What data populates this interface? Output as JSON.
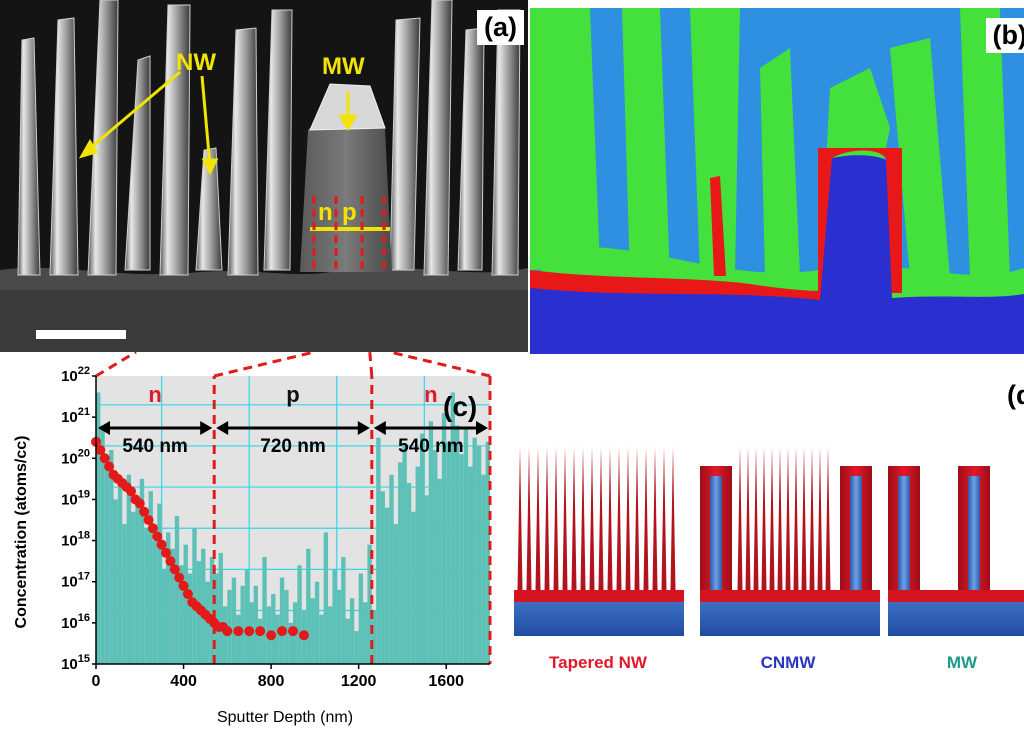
{
  "panel_a": {
    "label": "(a)",
    "annotations": {
      "nw": "NW",
      "mw": "MW",
      "n": "n",
      "p": "p"
    }
  },
  "panel_b": {
    "label": "(b)"
  },
  "panel_c": {
    "label": "(c)"
  },
  "panel_d": {
    "label": "(d",
    "structures": [
      {
        "label": "Tapered NW",
        "color": "#e0192a"
      },
      {
        "label": "CNMW",
        "color": "#2b35c0"
      },
      {
        "label": "MW",
        "color": "#1f9a8a"
      }
    ]
  },
  "chart_data": {
    "type": "bar",
    "ylabel": "Concentration (atoms/cc)",
    "xlabel": "Sputter Depth (nm)",
    "xlim": [
      0,
      1800
    ],
    "ylim_log10": [
      15,
      22
    ],
    "y_scale": "log",
    "x_ticks": [
      "0",
      "400",
      "800",
      "1200",
      "1600"
    ],
    "y_ticks": [
      "10^15",
      "10^16",
      "10^17",
      "10^18",
      "10^19",
      "10^20",
      "10^21",
      "10^22"
    ],
    "regions": [
      {
        "label": "n",
        "from": 0,
        "to": 540,
        "width_label": "540 nm",
        "label_color": "#e0192a"
      },
      {
        "label": "p",
        "from": 540,
        "to": 1260,
        "width_label": "720 nm",
        "label_color": "#111111"
      },
      {
        "label": "n",
        "from": 1260,
        "to": 1800,
        "width_label": "540 nm",
        "label_color": "#e0192a"
      }
    ],
    "series": [
      {
        "style": "bars",
        "color": "#5ec1b8",
        "bin_width_nm": 20,
        "start_nm": 0,
        "log10_values": [
          21.6,
          20.8,
          19.8,
          20.2,
          19.0,
          19.5,
          18.4,
          19.6,
          18.7,
          18.9,
          19.5,
          18.3,
          19.2,
          18.0,
          18.9,
          17.3,
          18.2,
          17.8,
          18.6,
          17.4,
          17.9,
          17.2,
          18.3,
          17.5,
          17.8,
          17.0,
          17.6,
          17.2,
          17.7,
          16.4,
          16.8,
          17.1,
          16.2,
          16.9,
          17.3,
          16.5,
          16.9,
          16.1,
          17.6,
          16.4,
          16.7,
          16.2,
          17.1,
          16.8,
          16.0,
          16.5,
          17.4,
          16.3,
          17.8,
          16.6,
          17.0,
          16.2,
          18.2,
          16.4,
          17.3,
          16.8,
          17.6,
          16.1,
          16.6,
          15.8,
          17.2,
          16.5,
          17.9,
          16.3,
          20.5,
          19.2,
          18.8,
          19.6,
          18.4,
          19.9,
          20.3,
          19.4,
          18.7,
          19.8,
          20.6,
          19.1,
          20.9,
          20.2,
          19.5,
          21.1,
          20.4,
          21.6,
          20.8,
          20.1,
          20.7,
          19.8,
          20.5,
          20.3,
          19.6,
          20.4
        ]
      },
      {
        "style": "markers",
        "color": "#e21a1a",
        "x": [
          0,
          20,
          40,
          60,
          80,
          100,
          120,
          140,
          160,
          180,
          200,
          220,
          240,
          260,
          280,
          300,
          320,
          340,
          360,
          380,
          400,
          420,
          440,
          460,
          480,
          500,
          520,
          540,
          560,
          580,
          600,
          650,
          700,
          750,
          800,
          850,
          900,
          950
        ],
        "log10_values": [
          20.4,
          20.2,
          20.0,
          19.8,
          19.6,
          19.5,
          19.4,
          19.3,
          19.2,
          19.0,
          18.9,
          18.7,
          18.5,
          18.3,
          18.1,
          17.9,
          17.7,
          17.5,
          17.3,
          17.1,
          16.9,
          16.7,
          16.5,
          16.4,
          16.3,
          16.2,
          16.1,
          16.0,
          15.9,
          15.9,
          15.8,
          15.8,
          15.8,
          15.8,
          15.7,
          15.8,
          15.8,
          15.7
        ]
      }
    ]
  }
}
